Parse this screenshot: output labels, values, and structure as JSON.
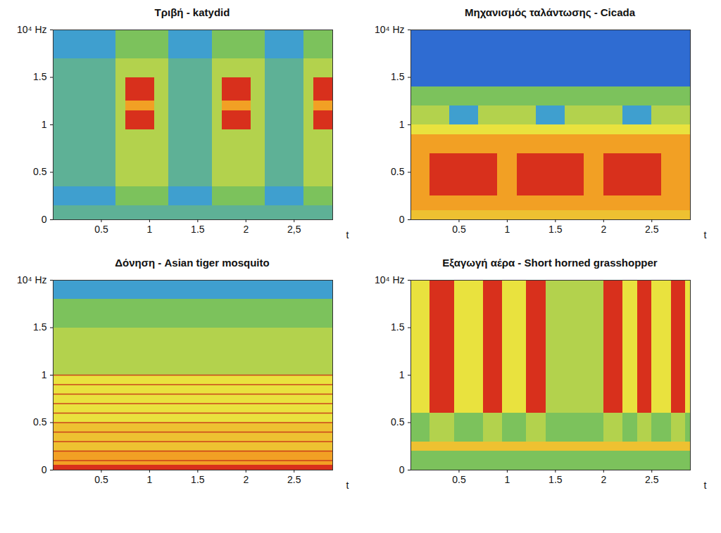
{
  "chart_data": [
    {
      "type": "heatmap",
      "title": "Τριβή - katydid",
      "x_label": "t",
      "xlim": [
        0,
        2.9
      ],
      "xticks": [
        0.5,
        1,
        1.5,
        2,
        {
          "value": 2.5,
          "label": "2,5"
        }
      ],
      "ylim": [
        0,
        2
      ],
      "yticks": [
        0,
        0.5,
        1,
        1.5,
        {
          "value": 2,
          "label": "10⁴ Hz"
        }
      ],
      "zlim": [
        0,
        5
      ],
      "time_edges": [
        0,
        0.65,
        0.75,
        1.05,
        1.2,
        1.65,
        1.75,
        2.05,
        2.2,
        2.6,
        2.7,
        2.9
      ],
      "freq_edges": [
        0,
        0.15,
        0.35,
        0.95,
        1.15,
        1.25,
        1.5,
        1.7,
        2.0
      ],
      "cells": [
        [
          1.5,
          1,
          1.5,
          1.5,
          1.5,
          1.5,
          1.5,
          1
        ],
        [
          1.5,
          2,
          2.5,
          2.5,
          2.5,
          2.5,
          2.5,
          2
        ],
        [
          1.5,
          2,
          2.5,
          5,
          4,
          5,
          2.5,
          2
        ],
        [
          1.5,
          2,
          2.5,
          2.5,
          2.5,
          2.5,
          2.5,
          2
        ],
        [
          1.5,
          1,
          1.5,
          1.5,
          1.5,
          1.5,
          1.5,
          1
        ],
        [
          1.5,
          2,
          2.5,
          2.5,
          2.5,
          2.5,
          2.5,
          2
        ],
        [
          1.5,
          2,
          2.5,
          5,
          4,
          5,
          2.5,
          2
        ],
        [
          1.5,
          2,
          2.5,
          2.5,
          2.5,
          2.5,
          2.5,
          2
        ],
        [
          1.5,
          1,
          1.5,
          1.5,
          1.5,
          1.5,
          1.5,
          1
        ],
        [
          1.5,
          2,
          2.5,
          2.5,
          2.5,
          2.5,
          2.5,
          2
        ],
        [
          1.5,
          2,
          2.5,
          5,
          4,
          5,
          2.5,
          2
        ]
      ]
    },
    {
      "type": "heatmap",
      "title": "Μηχανισμός ταλάντωσης - Cicada",
      "x_label": "t",
      "xlim": [
        0,
        2.9
      ],
      "xticks": [
        0.5,
        1,
        1.5,
        2,
        2.5
      ],
      "ylim": [
        0,
        2
      ],
      "yticks": [
        0,
        0.5,
        1,
        1.5,
        {
          "value": 2,
          "label": "10⁴ Hz"
        }
      ],
      "zlim": [
        0,
        5
      ],
      "time_edges": [
        0,
        0.2,
        0.4,
        0.7,
        0.9,
        1.1,
        1.3,
        1.6,
        1.8,
        2.0,
        2.2,
        2.5,
        2.6,
        2.9
      ],
      "freq_edges": [
        0,
        0.1,
        0.25,
        0.7,
        0.9,
        1.0,
        1.2,
        1.4,
        2.0
      ],
      "cells": [
        [
          3.5,
          4,
          4,
          4,
          3,
          2.5,
          2,
          0
        ],
        [
          3.5,
          4,
          5,
          4,
          3,
          2.5,
          2,
          0
        ],
        [
          3.5,
          4,
          5,
          4,
          3,
          1,
          2,
          0
        ],
        [
          3.5,
          4,
          5,
          4,
          3,
          2.5,
          2,
          0
        ],
        [
          3.5,
          4,
          4,
          4,
          3,
          2.5,
          2,
          0
        ],
        [
          3.5,
          4,
          5,
          4,
          3,
          2.5,
          2,
          0
        ],
        [
          3.5,
          4,
          5,
          4,
          3,
          1,
          2,
          0
        ],
        [
          3.5,
          4,
          5,
          4,
          3,
          2.5,
          2,
          0
        ],
        [
          3.5,
          4,
          4,
          4,
          3,
          2.5,
          2,
          0
        ],
        [
          3.5,
          4,
          5,
          4,
          3,
          2.5,
          2,
          0
        ],
        [
          3.5,
          4,
          5,
          4,
          3,
          1,
          2,
          0
        ],
        [
          3.5,
          4,
          5,
          4,
          3,
          2.5,
          2,
          0
        ],
        [
          3.5,
          4,
          4,
          4,
          3,
          2.5,
          2,
          0
        ]
      ]
    },
    {
      "type": "heatmap",
      "title": "Δόνηση - Asian tiger mosquito",
      "x_label": "t",
      "xlim": [
        0,
        2.9
      ],
      "xticks": [
        0.5,
        1,
        1.5,
        2,
        2.5
      ],
      "ylim": [
        0,
        2
      ],
      "yticks": [
        0,
        0.5,
        1,
        1.5,
        {
          "value": 2,
          "label": "10⁴ Hz"
        }
      ],
      "zlim": [
        0,
        5
      ],
      "time_edges": [
        0,
        2.9
      ],
      "freq_edges": [
        0,
        0.05,
        0.2,
        0.5,
        1.0,
        1.5,
        1.8,
        2.0
      ],
      "cells": [
        [
          5,
          4,
          3.5,
          3,
          2.5,
          2,
          1
        ]
      ],
      "harmonics": [
        0.1,
        0.2,
        0.3,
        0.4,
        0.5,
        0.6,
        0.7,
        0.8,
        0.9,
        1.0
      ]
    },
    {
      "type": "heatmap",
      "title": "Εξαγωγή αέρα - Short horned grasshopper",
      "x_label": "t",
      "xlim": [
        0,
        2.9
      ],
      "xticks": [
        0.5,
        1,
        1.5,
        2,
        2.5
      ],
      "ylim": [
        0,
        2
      ],
      "yticks": [
        0,
        0.5,
        1,
        1.5,
        {
          "value": 2,
          "label": "10⁴ Hz"
        }
      ],
      "zlim": [
        0,
        5
      ],
      "time_edges": [
        0,
        0.2,
        0.45,
        0.75,
        0.95,
        1.2,
        1.4,
        2.0,
        2.2,
        2.35,
        2.5,
        2.7,
        2.85,
        2.9
      ],
      "freq_edges": [
        0,
        0.2,
        0.3,
        0.6,
        2.0
      ],
      "cells": [
        [
          2,
          3.5,
          2,
          3
        ],
        [
          2,
          3.5,
          2.5,
          5
        ],
        [
          2,
          3.5,
          2,
          3
        ],
        [
          2,
          3.5,
          2.5,
          5
        ],
        [
          2,
          3.5,
          2,
          3
        ],
        [
          2,
          3.5,
          2.5,
          5
        ],
        [
          2,
          3.5,
          2,
          2.5
        ],
        [
          2,
          3.5,
          2.5,
          5
        ],
        [
          2,
          3.5,
          2,
          3
        ],
        [
          2,
          3.5,
          2.5,
          5
        ],
        [
          2,
          3.5,
          2,
          3
        ],
        [
          2,
          3.5,
          2.5,
          5
        ],
        [
          2,
          3.5,
          2,
          3
        ]
      ]
    }
  ]
}
